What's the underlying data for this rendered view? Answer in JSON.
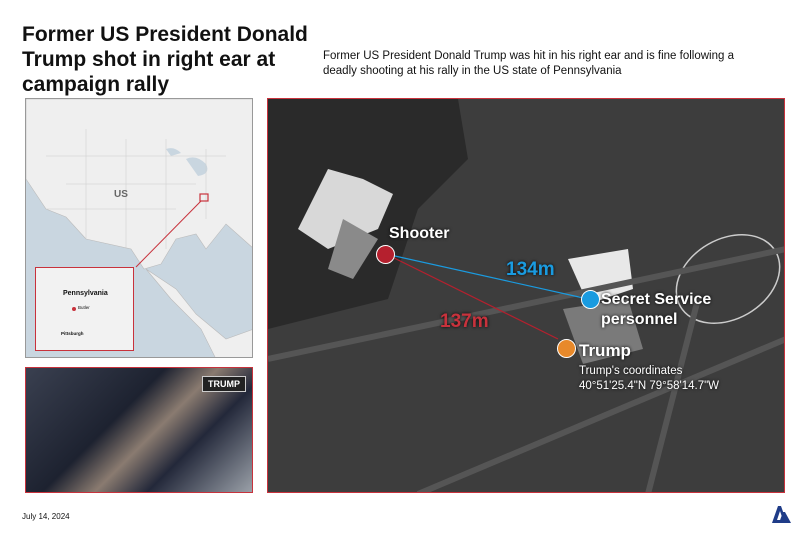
{
  "header": {
    "title": "Former US President Donald Trump shot in right ear at campaign rally",
    "subtitle": "Former US President Donald Trump was hit in his right ear and is fine following a deadly shooting at his rally in the US state of Pennsylvania"
  },
  "locator_map": {
    "country_label": "US",
    "inset_state": "Pennsylvania",
    "inset_city_marked": "Butler",
    "inset_city": "Pittsburgh",
    "highlight_color": "#c8323c"
  },
  "photo": {
    "sign_text": "TRUMP"
  },
  "aerial": {
    "shooter": {
      "label": "Shooter",
      "color": "#b5202e"
    },
    "secret_service": {
      "label_line1": "Secret Service",
      "label_line2": "personnel",
      "color": "#1a9be0"
    },
    "trump": {
      "label": "Trump",
      "color": "#e8892a",
      "coordinates_label": "Trump's coordinates",
      "coordinates": "40°51'25.4\"N 79°58'14.7\"W"
    },
    "distance_to_secret_service": "134m",
    "distance_to_trump": "137m"
  },
  "footer": {
    "date": "July 14, 2024",
    "logo": "AA"
  }
}
